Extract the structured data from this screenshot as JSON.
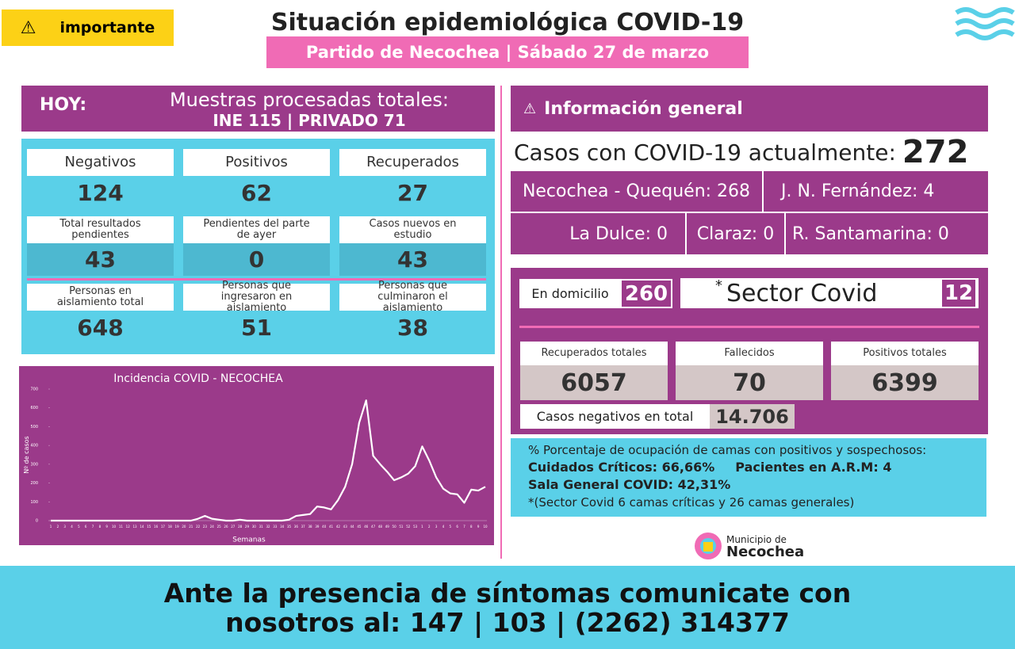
{
  "header": {
    "badge": "importante",
    "title": "Situación epidemiológica COVID-19",
    "subtitle": "Partido de Necochea | Sábado 27 de marzo"
  },
  "today": {
    "label": "HOY:",
    "muestras": "Muestras procesadas totales:",
    "detail": "INE 115 | PRIVADO 71"
  },
  "stats": [
    {
      "label": "Negativos",
      "value": 124
    },
    {
      "label": "Positivos",
      "value": 62
    },
    {
      "label": "Recuperados",
      "value": 27
    },
    {
      "label": "Total resultados pendientes",
      "value": 43
    },
    {
      "label": "Pendientes del parte de ayer",
      "value": 0
    },
    {
      "label": "Casos nuevos en estudio",
      "value": 43
    },
    {
      "label": "Personas en aislamiento total",
      "value": 648
    },
    {
      "label": "Personas que ingresaron en aislamiento",
      "value": 51
    },
    {
      "label": "Personas que culminaron el aislamiento",
      "value": 38
    }
  ],
  "chart_data": {
    "type": "line",
    "title": "Incidencia COVID - NECOCHEA",
    "ylabel": "Nº de casos",
    "xlabel": "Semanas",
    "color": "#ffffff",
    "grid": false,
    "categories": [
      "1",
      "2",
      "3",
      "4",
      "5",
      "6",
      "7",
      "8",
      "9",
      "10",
      "11",
      "12",
      "13",
      "14",
      "15",
      "16",
      "17",
      "18",
      "19",
      "20",
      "21",
      "22",
      "23",
      "24",
      "25",
      "26",
      "27",
      "28",
      "29",
      "30",
      "31",
      "32",
      "33",
      "34",
      "35",
      "36",
      "37",
      "38",
      "39",
      "40",
      "41",
      "42",
      "43",
      "44",
      "45",
      "46",
      "47",
      "48",
      "49",
      "50",
      "51",
      "52",
      "53",
      "1",
      "2",
      "3",
      "4",
      "5",
      "6",
      "7",
      "8",
      "9",
      "10"
    ],
    "values": [
      0,
      0,
      0,
      0,
      0,
      0,
      0,
      0,
      0,
      0,
      0,
      0,
      0,
      0,
      0,
      0,
      0,
      0,
      0,
      0,
      0,
      10,
      25,
      10,
      5,
      0,
      0,
      5,
      0,
      0,
      0,
      0,
      0,
      0,
      5,
      25,
      30,
      35,
      75,
      70,
      60,
      110,
      180,
      300,
      520,
      640,
      345,
      300,
      260,
      215,
      230,
      250,
      290,
      395,
      320,
      230,
      170,
      145,
      140,
      95,
      165,
      160,
      180
    ],
    "ylim": [
      0,
      700
    ],
    "yticks": [
      0,
      100,
      200,
      300,
      400,
      500,
      600,
      700
    ]
  },
  "general": {
    "title": "Información general",
    "casos_label": "Casos con COVID-19 actualmente:",
    "casos": 272,
    "localities": [
      "Necochea - Quequén: 268",
      "J. N. Fernández: 4",
      "La Dulce: 0",
      "Claraz: 0",
      "R. Santamarina: 0"
    ]
  },
  "status": {
    "domicilio_label": "En domicilio",
    "domicilio": 260,
    "sector_mark": "*",
    "sector_label": "Sector Covid",
    "sector": 12,
    "totals": [
      {
        "label": "Recuperados totales",
        "value": 6057
      },
      {
        "label": "Fallecidos",
        "value": 70
      },
      {
        "label": "Positivos totales",
        "value": 6399
      }
    ],
    "negativos_label": "Casos negativos en total",
    "negativos": "14.706"
  },
  "beds": {
    "intro": "% Porcentaje de ocupación de camas con positivos y sospechosos:",
    "critical": "Cuidados Críticos: 66,66%",
    "arm": "Pacientes en A.R.M: 4",
    "general": "Sala General COVID: 42,31%",
    "note": "*(Sector Covid 6 camas críticas y  26 camas generales)"
  },
  "logo": {
    "line1": "Municipio de",
    "line2": "Necochea"
  },
  "footer": {
    "line1": "Ante la presencia de síntomas comunicate con",
    "line2": "nosotros al: 147 | 103 | (2262) 314377"
  }
}
